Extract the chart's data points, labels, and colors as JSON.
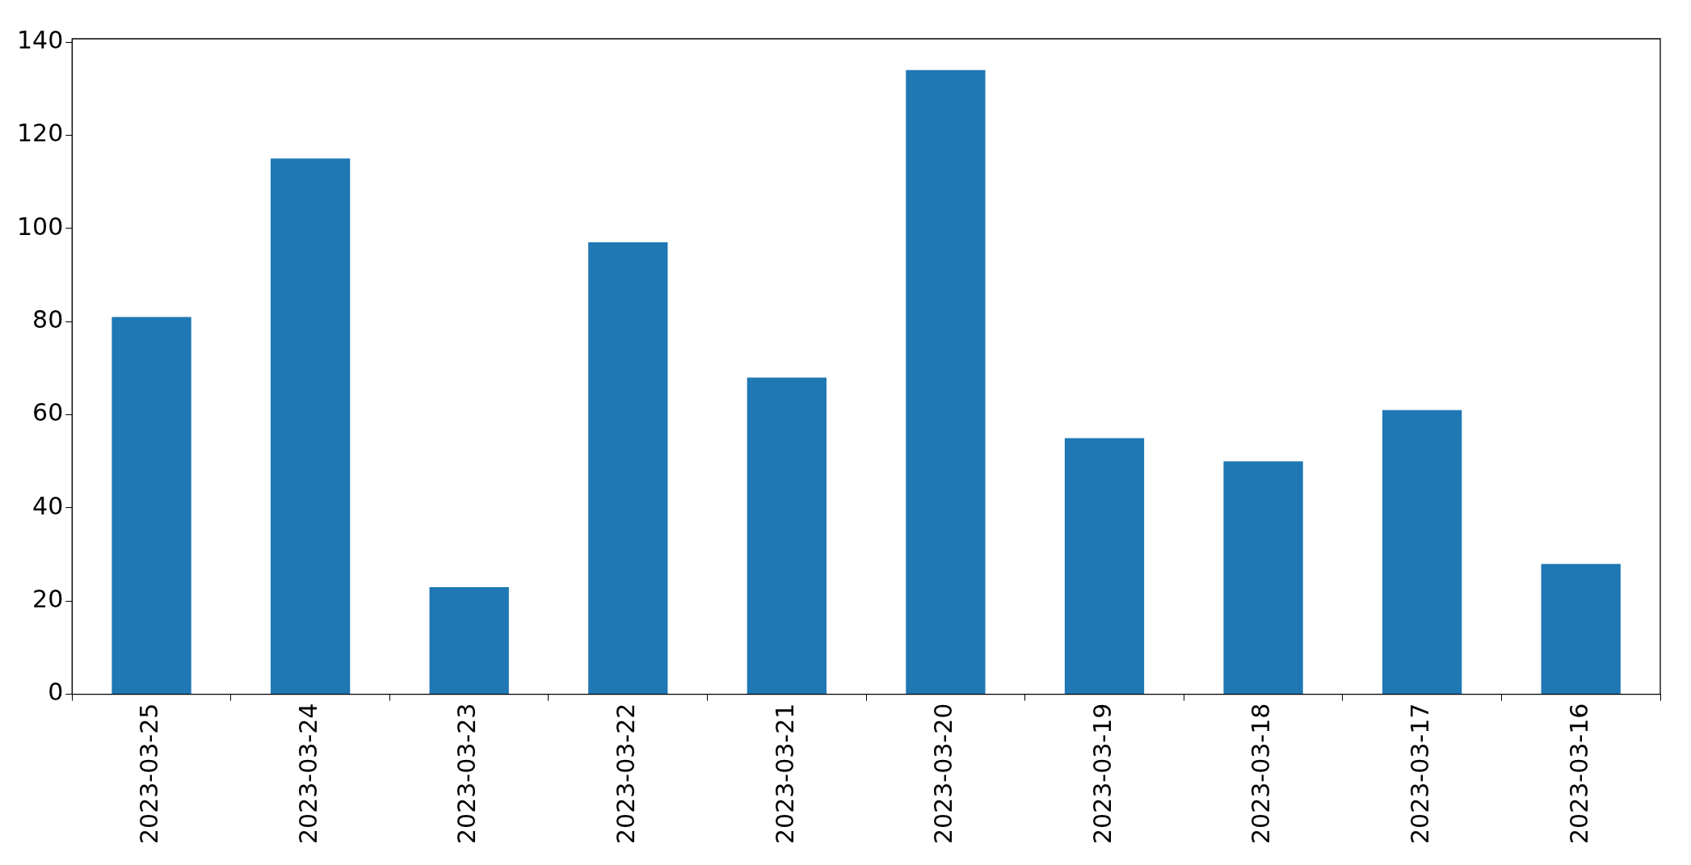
{
  "chart_data": {
    "type": "bar",
    "categories": [
      "2023-03-25",
      "2023-03-24",
      "2023-03-23",
      "2023-03-22",
      "2023-03-21",
      "2023-03-20",
      "2023-03-19",
      "2023-03-18",
      "2023-03-17",
      "2023-03-16"
    ],
    "values": [
      81,
      115,
      23,
      97,
      68,
      134,
      55,
      50,
      61,
      28
    ],
    "color": "#1f77b4",
    "ylim": [
      0,
      140.7
    ],
    "yticks": [
      0,
      20,
      40,
      60,
      80,
      100,
      120,
      140
    ],
    "grid": false,
    "legend": false
  }
}
